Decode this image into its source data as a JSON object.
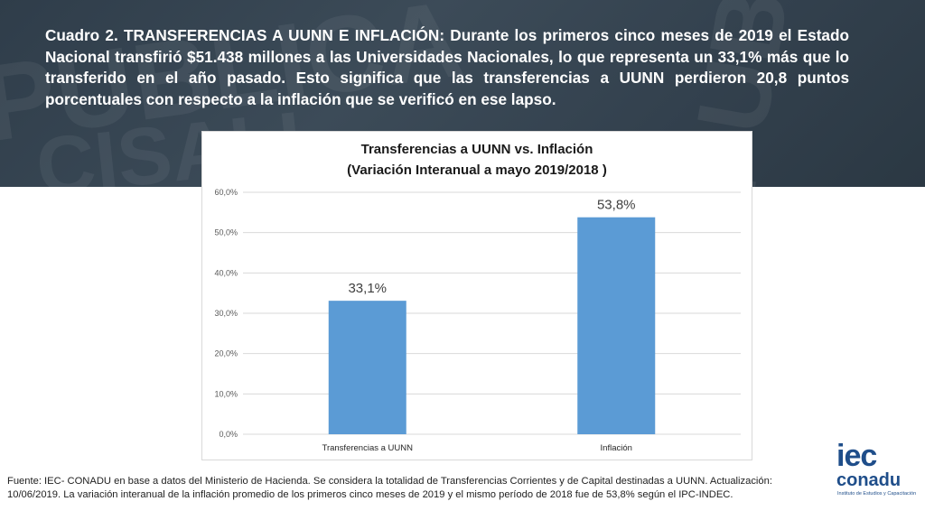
{
  "heading": "Cuadro 2. TRANSFERENCIAS A UUNN E INFLACIÓN: Durante los primeros cinco meses de 2019 el Estado Nacional transfirió $51.438 millones a las Universidades Nacionales, lo que representa un 33,1% más que lo transferido en el año pasado. Esto significa que las transferencias a UUNN perdieron 20,8 puntos porcentuales con respecto a la inflación que se verificó en ese lapso.",
  "chart_data": {
    "type": "bar",
    "title": "Transferencias a UUNN  vs. Inflación",
    "subtitle": "(Variación Interanual a mayo 2019/2018 )",
    "categories": [
      "Transferencias a UUNN",
      "Inflación"
    ],
    "values": [
      33.1,
      53.8
    ],
    "data_labels": [
      "33,1%",
      "53,8%"
    ],
    "yticks": [
      "0,0%",
      "10,0%",
      "20,0%",
      "30,0%",
      "40,0%",
      "50,0%",
      "60,0%"
    ],
    "ylim": [
      0,
      60
    ],
    "grid": true,
    "legend": "none",
    "bar_color": "#5b9bd5"
  },
  "footnote": "Fuente: IEC- CONADU en base a datos del Ministerio de Hacienda. Se considera la totalidad de Transferencias Corrientes y de Capital destinadas a UUNN. Actualización: 10/06/2019. La variación interanual de la inflación promedio de los primeros cinco meses de 2019 y el mismo período de 2018 fue de 53,8% según el IPC-INDEC.",
  "logo": {
    "brand_top": "iec",
    "brand_bottom": "conadu",
    "tagline": "Instituto de Estudios y Capacitación"
  }
}
